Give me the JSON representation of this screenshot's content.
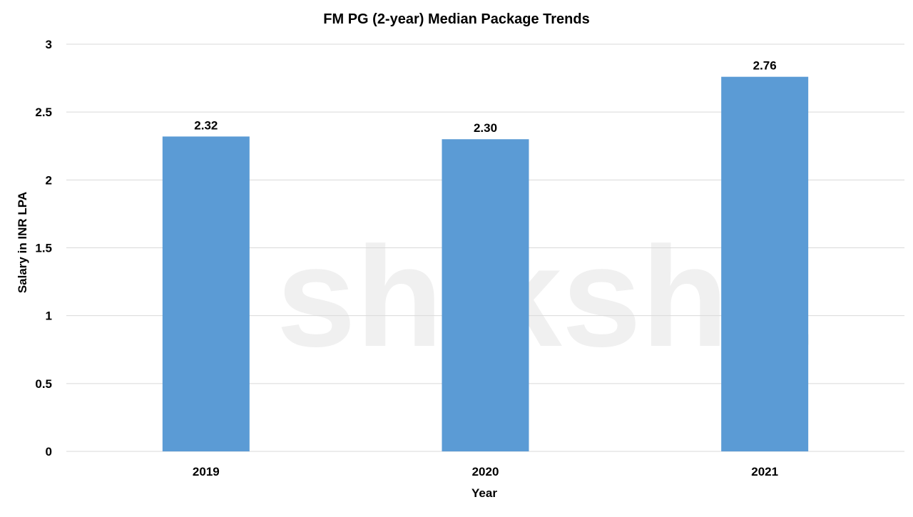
{
  "watermark": "shiksha",
  "chart_data": {
    "type": "bar",
    "title": "FM PG (2-year) Median Package Trends",
    "xlabel": "Year",
    "ylabel": "Salary in INR LPA",
    "categories": [
      "2019",
      "2020",
      "2021"
    ],
    "values": [
      2.32,
      2.3,
      2.76
    ],
    "data_labels": [
      "2.32",
      "2.30",
      "2.76"
    ],
    "ylim": [
      0,
      3
    ],
    "yticks": [
      "0",
      "0.5",
      "1",
      "1.5",
      "2",
      "2.5",
      "3"
    ],
    "grid": true,
    "legend": "none",
    "bar_color": "#5b9bd5"
  }
}
